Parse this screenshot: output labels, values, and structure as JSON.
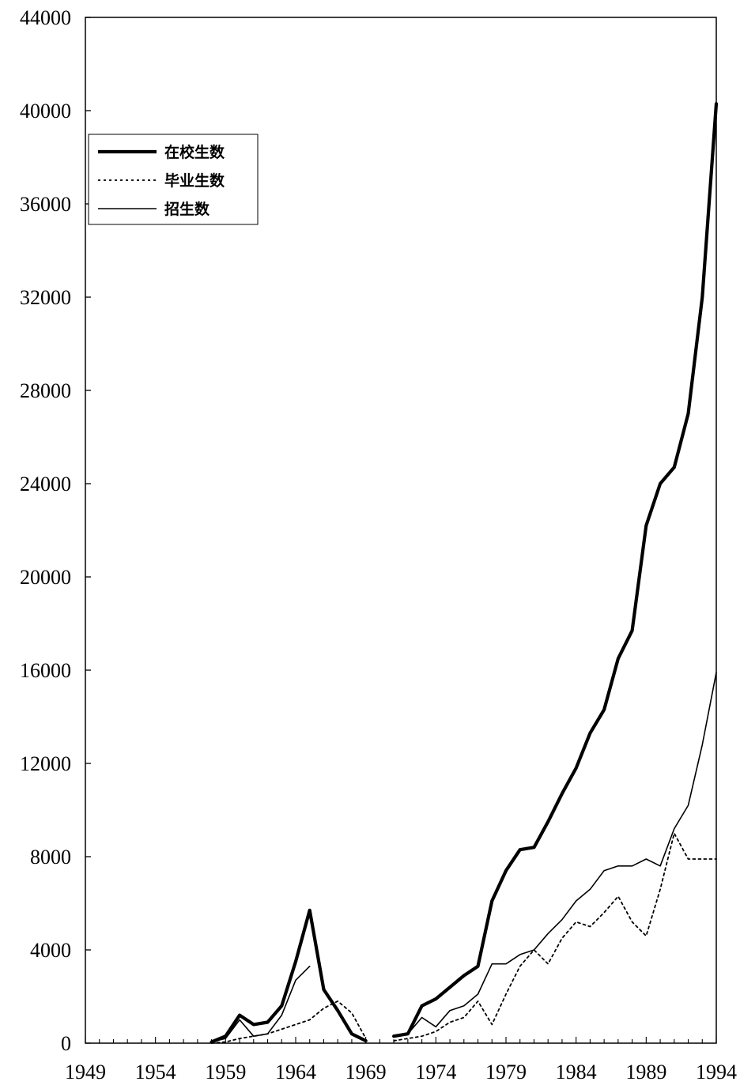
{
  "chart_data": {
    "type": "line",
    "title": "",
    "xlabel": "",
    "ylabel": "",
    "xlim": [
      1949,
      1994
    ],
    "ylim": [
      0,
      44000
    ],
    "x_ticks": [
      1949,
      1954,
      1959,
      1964,
      1969,
      1974,
      1979,
      1984,
      1989,
      1994
    ],
    "y_ticks": [
      0,
      4000,
      8000,
      12000,
      16000,
      20000,
      24000,
      28000,
      32000,
      36000,
      40000,
      44000
    ],
    "grid": false,
    "legend_position": "top-left",
    "series": [
      {
        "name": "在校生数",
        "style": "thick",
        "color": "#000000",
        "segments": [
          {
            "x": [
              1958,
              1959,
              1960,
              1961,
              1962,
              1963,
              1964,
              1965,
              1966,
              1967,
              1968,
              1969
            ],
            "y": [
              50,
              300,
              1200,
              800,
              900,
              1600,
              3500,
              5700,
              2300,
              1400,
              400,
              100
            ]
          },
          {
            "x": [
              1971,
              1972,
              1973,
              1974,
              1975,
              1976,
              1977,
              1978,
              1979,
              1980,
              1981,
              1982,
              1983,
              1984,
              1985,
              1986,
              1987,
              1988,
              1989,
              1990,
              1991,
              1992,
              1993,
              1994
            ],
            "y": [
              300,
              400,
              1600,
              1900,
              2400,
              2900,
              3300,
              6100,
              7400,
              8300,
              8400,
              9500,
              10700,
              11800,
              13300,
              14300,
              16500,
              17700,
              22200,
              24000,
              24700,
              27000,
              32000,
              40300
            ]
          }
        ]
      },
      {
        "name": "毕业生数",
        "style": "dotted",
        "color": "#000000",
        "segments": [
          {
            "x": [
              1958,
              1959,
              1960,
              1961,
              1962,
              1963,
              1964,
              1965,
              1966,
              1967,
              1968,
              1969
            ],
            "y": [
              0,
              50,
              200,
              300,
              400,
              600,
              800,
              1000,
              1500,
              1800,
              1300,
              200
            ]
          },
          {
            "x": [
              1971,
              1972,
              1973,
              1974,
              1975,
              1976,
              1977,
              1978,
              1979,
              1980,
              1981,
              1982,
              1983,
              1984,
              1985,
              1986,
              1987,
              1988,
              1989,
              1990,
              1991,
              1992,
              1993,
              1994
            ],
            "y": [
              100,
              200,
              300,
              500,
              900,
              1100,
              1800,
              800,
              2100,
              3300,
              4000,
              3400,
              4500,
              5200,
              5000,
              5600,
              6300,
              5200,
              4600,
              6600,
              9000,
              7900,
              7900,
              7900
            ]
          }
        ]
      },
      {
        "name": "招生数",
        "style": "thin",
        "color": "#000000",
        "segments": [
          {
            "x": [
              1958,
              1959,
              1960,
              1961,
              1962,
              1963,
              1964,
              1965
            ],
            "y": [
              50,
              200,
              1000,
              300,
              400,
              1200,
              2700,
              3300
            ]
          },
          {
            "x": [
              1971,
              1972,
              1973,
              1974,
              1975,
              1976,
              1977,
              1978,
              1979,
              1980,
              1981,
              1982,
              1983,
              1984,
              1985,
              1986,
              1987,
              1988,
              1989,
              1990,
              1991,
              1992,
              1993,
              1994
            ],
            "y": [
              300,
              400,
              1100,
              700,
              1400,
              1600,
              2100,
              3400,
              3400,
              3800,
              4000,
              4700,
              5300,
              6100,
              6600,
              7400,
              7600,
              7600,
              7900,
              7600,
              9200,
              10200,
              12800,
              15900
            ]
          }
        ]
      }
    ]
  }
}
